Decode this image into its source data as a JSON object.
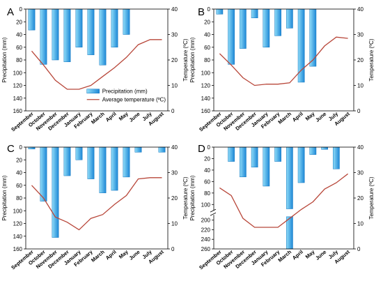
{
  "colors": {
    "bar_dark": "#1e88d6",
    "bar_light": "#8fdcf8",
    "line": "#b8473a",
    "axis": "#000000"
  },
  "legend": {
    "bar_label": "Precipitation (mm)",
    "line_label": "Average temperature (ºC)"
  },
  "chart_data": [
    {
      "panel": "A",
      "type": "bar+line",
      "categories": [
        "September",
        "October",
        "November",
        "December",
        "January",
        "February",
        "March",
        "April",
        "May",
        "June",
        "July",
        "August"
      ],
      "ylabel": "Precipitation (mm)",
      "y2label": "Temperature (ºC)",
      "ylim": [
        0,
        160
      ],
      "yticks": [
        0,
        20,
        40,
        60,
        80,
        100,
        120,
        140,
        160
      ],
      "y2lim": [
        0,
        40
      ],
      "y2ticks": [
        0,
        10,
        20,
        30,
        40
      ],
      "series": [
        {
          "name": "Precipitation (mm)",
          "type": "bar",
          "values": [
            33,
            87,
            80,
            83,
            60,
            72,
            88,
            60,
            40,
            0,
            0,
            0
          ]
        },
        {
          "name": "Average temperature (ºC)",
          "type": "line",
          "values": [
            23.5,
            18,
            12,
            8.5,
            8.5,
            10,
            13.5,
            17,
            21,
            26,
            28,
            28
          ]
        }
      ],
      "legend_position": "bottom-right"
    },
    {
      "panel": "B",
      "type": "bar+line",
      "categories": [
        "September",
        "October",
        "November",
        "December",
        "January",
        "February",
        "March",
        "April",
        "May",
        "June",
        "July",
        "August"
      ],
      "ylabel": "Precipitation (mm)",
      "y2label": "Temperature (ºC)",
      "ylim": [
        0,
        160
      ],
      "yticks": [
        0,
        20,
        40,
        60,
        80,
        100,
        120,
        140,
        160
      ],
      "y2lim": [
        0,
        40
      ],
      "y2ticks": [
        0,
        10,
        20,
        30,
        40
      ],
      "series": [
        {
          "name": "Precipitation (mm)",
          "type": "bar",
          "values": [
            8,
            87,
            62,
            14,
            60,
            42,
            30,
            115,
            90,
            0,
            0,
            0
          ]
        },
        {
          "name": "Average temperature (ºC)",
          "type": "line",
          "values": [
            22.5,
            18,
            13,
            10,
            10.5,
            10.5,
            11,
            16,
            20,
            25.5,
            29,
            28.5
          ]
        }
      ]
    },
    {
      "panel": "C",
      "type": "bar+line",
      "categories": [
        "September",
        "October",
        "November",
        "December",
        "January",
        "February",
        "March",
        "April",
        "May",
        "June",
        "July",
        "August"
      ],
      "ylabel": "Precipitation (mm)",
      "y2label": "Temperature (ºC)",
      "ylim": [
        0,
        160
      ],
      "yticks": [
        0,
        20,
        40,
        60,
        80,
        100,
        120,
        140,
        160
      ],
      "y2lim": [
        0,
        40
      ],
      "y2ticks": [
        0,
        10,
        20,
        30,
        40
      ],
      "series": [
        {
          "name": "Precipitation (mm)",
          "type": "bar",
          "values": [
            3,
            85,
            142,
            45,
            20,
            50,
            72,
            68,
            47,
            8,
            0,
            8
          ]
        },
        {
          "name": "Average temperature (ºC)",
          "type": "line",
          "values": [
            25,
            20,
            12.5,
            10.5,
            7.5,
            12,
            13.5,
            17.5,
            21,
            27.5,
            28,
            28
          ]
        }
      ]
    },
    {
      "panel": "D",
      "type": "bar+line",
      "categories": [
        "September",
        "October",
        "November",
        "December",
        "January",
        "February",
        "March",
        "April",
        "May",
        "June",
        "July",
        "August"
      ],
      "ylabel": "Precipitation (mm)",
      "y2label": "Temperature (ºC)",
      "ylim": [
        0,
        260
      ],
      "yticks": [
        0,
        20,
        40,
        60,
        80,
        100,
        200,
        220,
        240,
        260
      ],
      "axis_break": [
        110,
        190
      ],
      "y2lim": [
        0,
        40
      ],
      "y2ticks": [
        0,
        10,
        20,
        30,
        40
      ],
      "series": [
        {
          "name": "Precipitation (mm)",
          "type": "bar",
          "values": [
            0,
            25,
            52,
            35,
            68,
            25,
            260,
            62,
            13,
            4,
            38,
            0
          ],
          "broken_bars": [
            6
          ]
        },
        {
          "name": "Average temperature (ºC)",
          "type": "line",
          "values": [
            24,
            21,
            12,
            8.5,
            8.5,
            8.5,
            12,
            15.5,
            18.5,
            23.5,
            26,
            29.5
          ]
        }
      ]
    }
  ]
}
